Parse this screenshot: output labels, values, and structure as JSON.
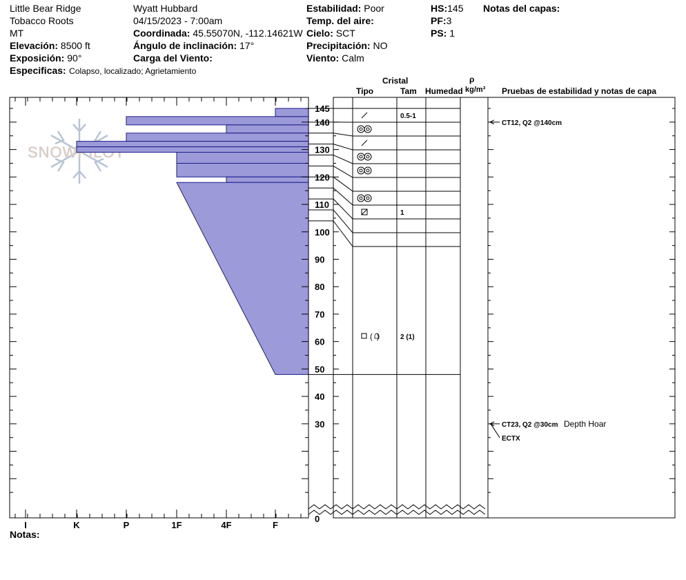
{
  "header": {
    "location": "Little Bear Ridge",
    "range": "Tobacco Roots",
    "state": "MT",
    "elevation_label": "Elevación:",
    "elevation_value": "8500 ft",
    "aspect_label": "Exposición:",
    "aspect_value": "90°",
    "specifics_label": "Especificas:",
    "specifics_value": "Colapso, localizado; Agrietamiento",
    "observer": "Wyatt Hubbard",
    "datetime": "04/15/2023 - 7:00am",
    "coord_label": "Coordinada:",
    "coord_value": "45.55070N, -112.14621W",
    "slope_label": "Ángulo de inclinación:",
    "slope_value": "17°",
    "wind_load_label": "Carga del Viento:",
    "wind_load_value": "",
    "stability_label": "Estabilidad:",
    "stability_value": "Poor",
    "air_temp_label": "Temp. del aire:",
    "air_temp_value": "",
    "sky_label": "Cielo:",
    "sky_value": "SCT",
    "precip_label": "Precipitación:",
    "precip_value": "NO",
    "wind_label": "Viento:",
    "wind_value": "Calm",
    "hs_label": "HS:",
    "hs_value": "145",
    "pf_label": "PF:",
    "pf_value": "3",
    "ps_label": "PS:",
    "ps_value": "1",
    "layer_notes_label": "Notas del capas:"
  },
  "columns": {
    "crystal": "Cristal",
    "type": "Tipo",
    "size": "Tam",
    "moisture": "Humedad",
    "rho": "ρ",
    "density_unit": "kg/m³",
    "tests": "Pruebas de estabilidad y notas de capa"
  },
  "notes_label": "Notas:",
  "watermark": "SNOWPILOT",
  "chart_data": {
    "type": "snow_profile",
    "hardness_ticks": [
      "I",
      "K",
      "P",
      "1F",
      "4F",
      "F"
    ],
    "depth_ticks": [
      0,
      30,
      40,
      50,
      60,
      70,
      80,
      90,
      100,
      110,
      120,
      130,
      140,
      145
    ],
    "depth_range": [
      0,
      145
    ],
    "hardness_profile": [
      {
        "top": 145,
        "bottom": 142,
        "hardness": "F"
      },
      {
        "top": 142,
        "bottom": 139,
        "hardness": "P"
      },
      {
        "top": 139,
        "bottom": 136,
        "hardness": "4F"
      },
      {
        "top": 136,
        "bottom": 133,
        "hardness": "P"
      },
      {
        "top": 133,
        "bottom": 131,
        "hardness": "K"
      },
      {
        "top": 131,
        "bottom": 129,
        "hardness": "K"
      },
      {
        "top": 129,
        "bottom": 125,
        "hardness": "1F"
      },
      {
        "top": 125,
        "bottom": 120,
        "hardness": "1F"
      },
      {
        "top": 120,
        "bottom": 118,
        "hardness": "4F"
      },
      {
        "top": 118,
        "bottom": 48,
        "hardness_top": "1F",
        "hardness_bottom": "F"
      }
    ],
    "layer_boundaries": [
      145,
      140,
      136,
      132,
      128,
      124,
      120,
      116,
      112,
      108,
      104,
      48,
      0
    ],
    "grain_rows": [
      {
        "type": "slash",
        "size": "0.5-1"
      },
      {
        "type": "rounded"
      },
      {
        "type": "slash"
      },
      {
        "type": "rounded"
      },
      {
        "type": "rounded"
      },
      {
        "type": ""
      },
      {
        "type": "rounded"
      },
      {
        "type": "facet",
        "size": "1"
      },
      {
        "type": ""
      },
      {
        "type": ""
      },
      {
        "type": "facet-paren",
        "size": "2 (1)"
      },
      {
        "type": ""
      }
    ],
    "tests": [
      {
        "depth": 140,
        "label": "CT12, Q2 @140cm",
        "note": ""
      },
      {
        "depth": 30,
        "label": "CT23, Q2 @30cm",
        "note": "Depth Hoar"
      },
      {
        "depth": 30,
        "label": "ECTX",
        "note": ""
      }
    ]
  }
}
